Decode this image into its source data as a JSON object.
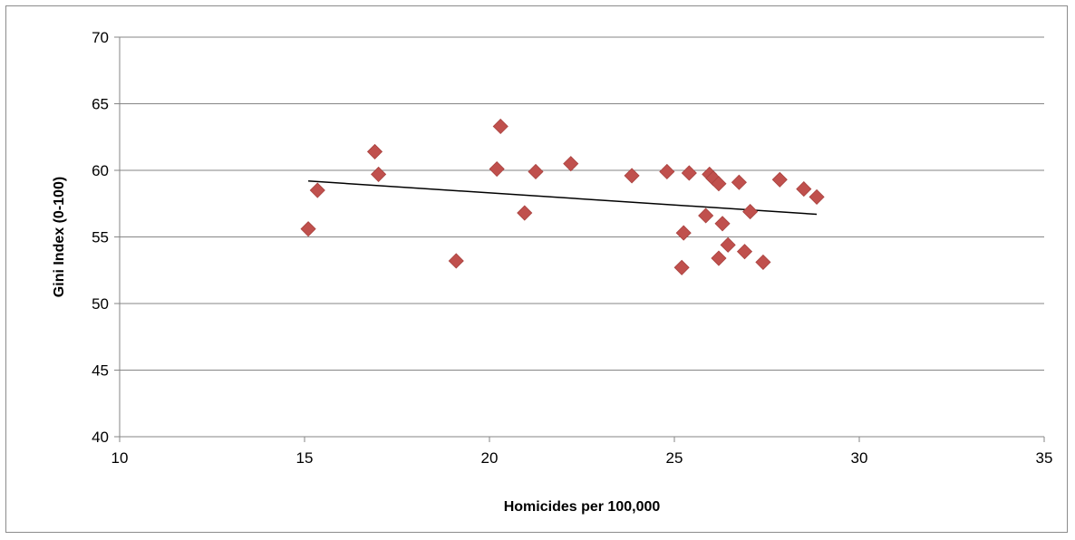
{
  "chart_data": {
    "type": "scatter",
    "xlabel": "Homicides per 100,000",
    "ylabel": "Gini Index (0-100)",
    "xlim": [
      10,
      35
    ],
    "ylim": [
      40,
      70
    ],
    "x_ticks": [
      "10",
      "15",
      "20",
      "25",
      "30",
      "35"
    ],
    "y_ticks": [
      "40",
      "45",
      "50",
      "55",
      "60",
      "65",
      "70"
    ],
    "grid": "horizontal",
    "legend": "none",
    "marker_color": "#c0504d",
    "trendline_color": "#000000",
    "points": [
      {
        "x": 15.1,
        "y": 55.6
      },
      {
        "x": 15.35,
        "y": 58.5
      },
      {
        "x": 16.9,
        "y": 61.4
      },
      {
        "x": 17.0,
        "y": 59.7
      },
      {
        "x": 19.1,
        "y": 53.2
      },
      {
        "x": 20.2,
        "y": 60.1
      },
      {
        "x": 20.3,
        "y": 63.3
      },
      {
        "x": 20.95,
        "y": 56.8
      },
      {
        "x": 21.25,
        "y": 59.9
      },
      {
        "x": 22.2,
        "y": 60.5
      },
      {
        "x": 23.85,
        "y": 59.6
      },
      {
        "x": 24.8,
        "y": 59.9
      },
      {
        "x": 25.2,
        "y": 52.7
      },
      {
        "x": 25.25,
        "y": 55.3
      },
      {
        "x": 25.4,
        "y": 59.8
      },
      {
        "x": 25.85,
        "y": 56.6
      },
      {
        "x": 25.95,
        "y": 59.7
      },
      {
        "x": 26.05,
        "y": 59.4
      },
      {
        "x": 26.2,
        "y": 59.0
      },
      {
        "x": 26.2,
        "y": 53.4
      },
      {
        "x": 26.3,
        "y": 56.0
      },
      {
        "x": 26.45,
        "y": 54.4
      },
      {
        "x": 26.75,
        "y": 59.1
      },
      {
        "x": 26.9,
        "y": 53.9
      },
      {
        "x": 27.05,
        "y": 56.9
      },
      {
        "x": 27.4,
        "y": 53.1
      },
      {
        "x": 27.85,
        "y": 59.3
      },
      {
        "x": 28.5,
        "y": 58.6
      },
      {
        "x": 28.85,
        "y": 58.0
      }
    ],
    "trendline": [
      {
        "x": 15.1,
        "y": 59.2
      },
      {
        "x": 28.85,
        "y": 56.7
      }
    ]
  }
}
